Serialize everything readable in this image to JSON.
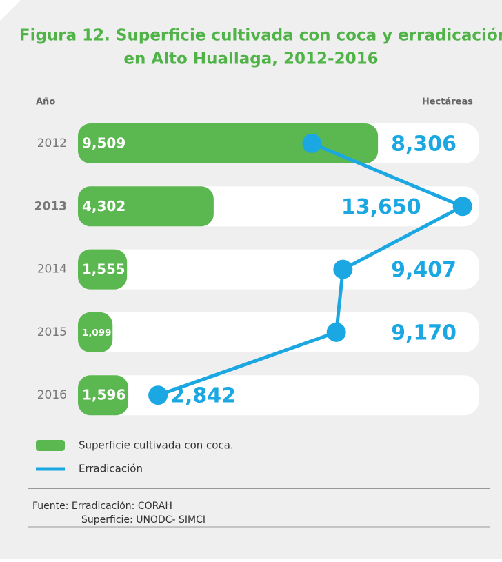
{
  "chart_data": {
    "type": "bar-line",
    "title": [
      "Figura 12. Superficie cultivada con coca y erradicación",
      "en Alto Huallaga,  2012-2016"
    ],
    "y_axis_label": "Año",
    "x_axis_label": "Hectáreas",
    "categories": [
      "2012",
      "2013",
      "2014",
      "2015",
      "2016"
    ],
    "xlim": [
      0,
      12500
    ],
    "x2lim": [
      0,
      14000
    ],
    "series": [
      {
        "name": "Superficie cultivada con coca.",
        "color": "#5bb74f",
        "values": [
          9509,
          4302,
          1555,
          1099,
          1596
        ],
        "value_labels": [
          "9,509",
          "4,302",
          "1,555",
          "1,099",
          "1,596"
        ]
      },
      {
        "name": "Erradicación",
        "color": "#1aa7e2",
        "axis": "x2",
        "values": [
          8306,
          13650,
          9407,
          9170,
          2842
        ],
        "value_labels": [
          "8,306",
          "13,650",
          "9,407",
          "9,170",
          "2,842"
        ]
      }
    ],
    "source": [
      "Fuente: Erradicación: CORAH",
      "Superficie: UNODC- SIMCI"
    ]
  }
}
